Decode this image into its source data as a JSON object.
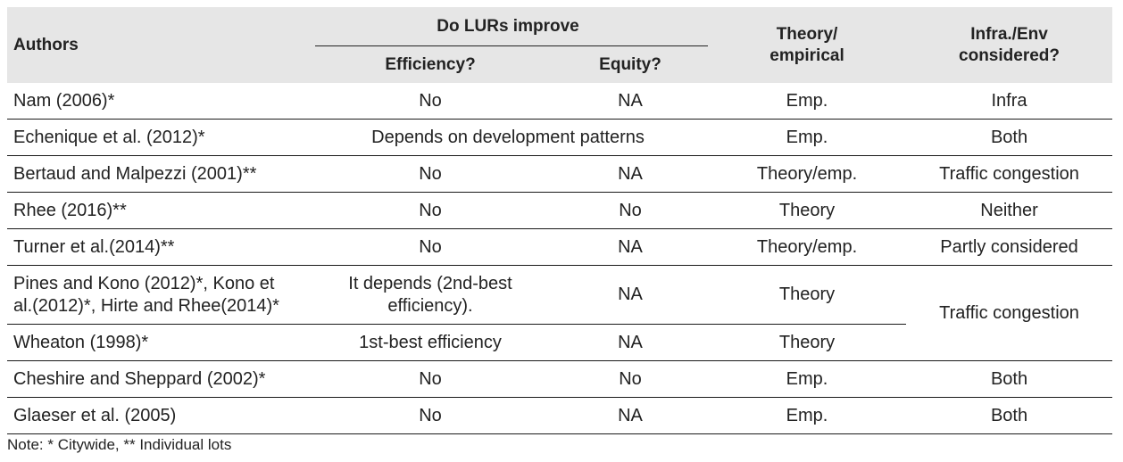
{
  "table": {
    "headers": {
      "authors": "Authors",
      "group": "Do LURs improve",
      "efficiency": "Efficiency?",
      "equity": "Equity?",
      "theory_line1": "Theory/",
      "theory_line2": "empirical",
      "infra_line1": "Infra./Env",
      "infra_line2": "considered?"
    },
    "rows": [
      {
        "authors": "Nam (2006)*",
        "efficiency": "No",
        "equity": "NA",
        "theory": "Emp.",
        "infra": "Infra"
      },
      {
        "authors": "Echenique et al. (2012)*",
        "efficiency_equity": "Depends on development patterns",
        "theory": "Emp.",
        "infra": "Both"
      },
      {
        "authors": "Bertaud and Malpezzi (2001)**",
        "efficiency": "No",
        "equity": "NA",
        "theory": "Theory/emp.",
        "infra": "Traffic congestion"
      },
      {
        "authors": "Rhee (2016)**",
        "efficiency": "No",
        "equity": "No",
        "theory": "Theory",
        "infra": "Neither"
      },
      {
        "authors": "Turner et al.(2014)**",
        "efficiency": "No",
        "equity": "NA",
        "theory": "Theory/emp.",
        "infra": "Partly considered"
      },
      {
        "authors_line1": "Pines and Kono (2012)*, Kono et",
        "authors_line2": "al.(2012)*, Hirte and Rhee(2014)*",
        "efficiency_line1": "It depends (2nd-best",
        "efficiency_line2": "efficiency).",
        "equity": "NA",
        "theory": "Theory",
        "infra": "Traffic congestion"
      },
      {
        "authors": "Wheaton (1998)*",
        "efficiency": "1st-best efficiency",
        "equity": "NA",
        "theory": "Theory"
      },
      {
        "authors": "Cheshire and Sheppard (2002)*",
        "efficiency": "No",
        "equity": "No",
        "theory": "Emp.",
        "infra": "Both"
      },
      {
        "authors": "Glaeser et al. (2005)",
        "efficiency": "No",
        "equity": "NA",
        "theory": "Emp.",
        "infra": "Both"
      }
    ]
  },
  "note": "Note: * Citywide, ** Individual lots"
}
